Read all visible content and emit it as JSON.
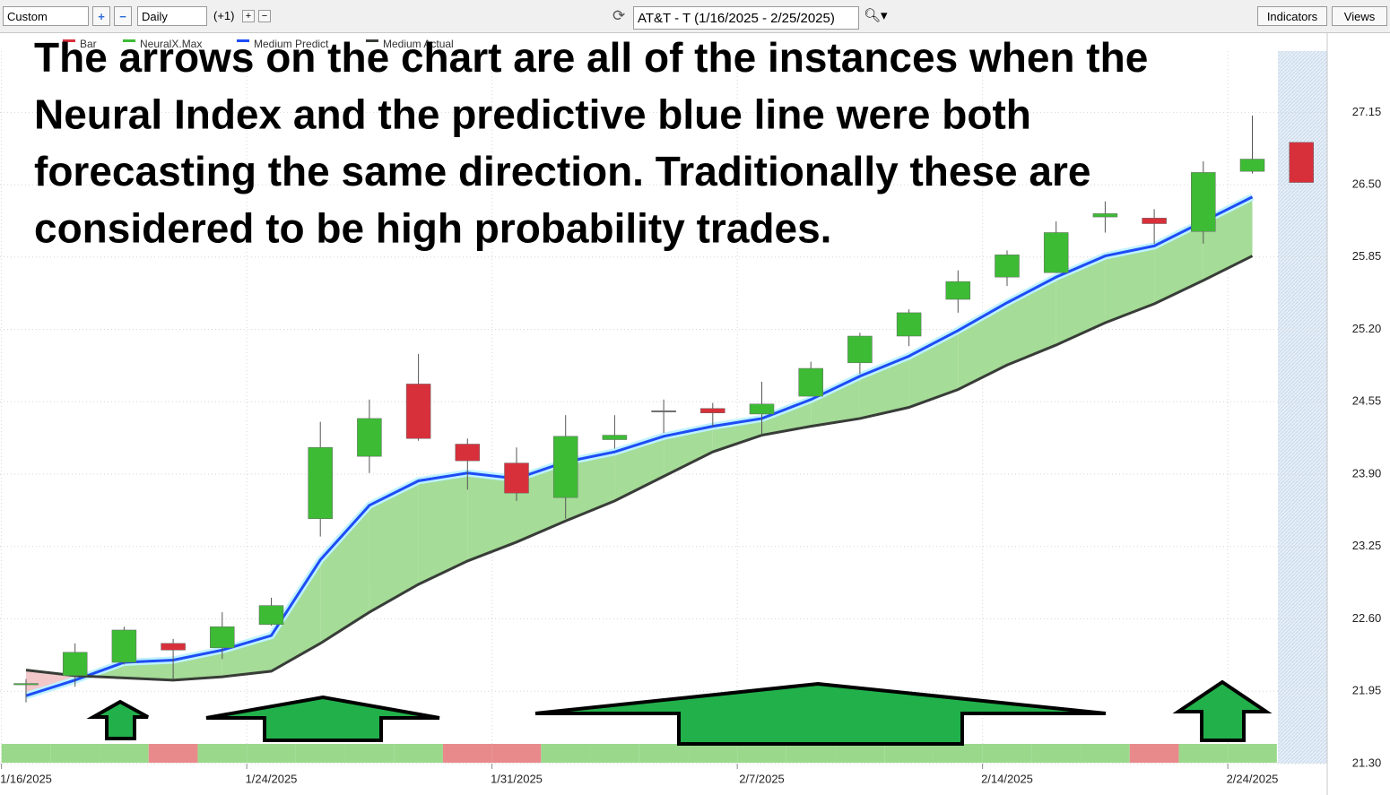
{
  "toolbar": {
    "range": "Custom",
    "interval": "Daily",
    "offset": "(+1)",
    "symbol": "AT&T - T (1/16/2025 - 2/25/2025)",
    "indicators": "Indicators",
    "views": "Views"
  },
  "chart_data": {
    "type": "candlestick",
    "annotation": [
      "The arrows on the chart are all of the instances when the",
      "Neural Index and the predictive blue line were both",
      "forecasting the same direction.  Traditionally these are",
      "considered to be high probability trades."
    ],
    "candle_legend": "Bar",
    "categories": [
      "1/16/2025",
      null,
      null,
      null,
      null,
      "1/24/2025",
      null,
      null,
      null,
      null,
      "1/31/2025",
      null,
      null,
      null,
      null,
      "2/7/2025",
      null,
      null,
      null,
      null,
      "2/14/2025",
      null,
      null,
      null,
      null,
      "2/24/2025",
      null
    ],
    "open": [
      22.01,
      22.09,
      22.21,
      22.38,
      22.34,
      22.55,
      23.5,
      24.06,
      24.71,
      24.17,
      24.0,
      23.69,
      24.21,
      24.47,
      24.49,
      24.44,
      24.6,
      24.9,
      25.14,
      25.47,
      25.67,
      25.71,
      26.21,
      26.2,
      26.08,
      26.62,
      26.88
    ],
    "high": [
      22.06,
      22.38,
      22.53,
      22.42,
      22.66,
      22.79,
      24.37,
      24.57,
      24.98,
      24.22,
      24.14,
      24.43,
      24.43,
      24.57,
      24.54,
      24.73,
      24.91,
      25.17,
      25.38,
      25.73,
      25.91,
      26.17,
      26.35,
      26.28,
      26.71,
      27.12,
      26.88
    ],
    "low": [
      21.85,
      21.99,
      22.19,
      22.06,
      22.24,
      22.54,
      23.34,
      23.91,
      24.2,
      23.76,
      23.66,
      23.5,
      24.13,
      24.27,
      24.33,
      24.25,
      24.6,
      24.8,
      25.05,
      25.35,
      25.59,
      25.71,
      26.07,
      25.97,
      25.97,
      26.6,
      26.52
    ],
    "close": [
      22.02,
      22.3,
      22.5,
      22.32,
      22.53,
      22.72,
      24.14,
      24.4,
      24.22,
      24.02,
      23.73,
      24.24,
      24.25,
      24.47,
      24.45,
      24.53,
      24.85,
      25.14,
      25.35,
      25.63,
      25.87,
      26.07,
      26.24,
      26.15,
      26.61,
      26.73,
      26.52
    ],
    "up_color": "#3dbb35",
    "down_color": "#d8303b",
    "series": [
      {
        "name": "Medium Predict",
        "color": "#1e4cf5",
        "values": [
          21.91,
          22.05,
          22.21,
          22.23,
          22.32,
          22.45,
          23.13,
          23.62,
          23.84,
          23.91,
          23.86,
          24.01,
          24.1,
          24.24,
          24.33,
          24.4,
          24.57,
          24.78,
          24.96,
          25.19,
          25.44,
          25.67,
          25.86,
          25.95,
          26.17,
          26.39,
          null
        ]
      },
      {
        "name": "Medium Actual",
        "color": "#383d38",
        "values": [
          22.14,
          22.09,
          22.07,
          22.05,
          22.08,
          22.13,
          22.38,
          22.66,
          22.91,
          23.12,
          23.29,
          23.48,
          23.66,
          23.88,
          24.1,
          24.25,
          24.33,
          24.4,
          24.5,
          24.66,
          24.88,
          25.06,
          25.26,
          25.43,
          25.64,
          25.86,
          null
        ]
      }
    ],
    "neural_index": {
      "name": "NeuralX.Max",
      "colors": [
        "#9ad98c",
        "#9ad98c",
        "#9ad98c",
        "#e88a8c",
        "#9ad98c",
        "#9ad98c",
        "#9ad98c",
        "#9ad98c",
        "#9ad98c",
        "#e88a8c",
        "#e88a8c",
        "#9ad98c",
        "#9ad98c",
        "#9ad98c",
        "#9ad98c",
        "#9ad98c",
        "#9ad98c",
        "#9ad98c",
        "#9ad98c",
        "#9ad98c",
        "#9ad98c",
        "#9ad98c",
        "#9ad98c",
        "#e88a8c",
        "#9ad98c",
        "#9ad98c"
      ]
    },
    "ylim": [
      21.3,
      27.7
    ],
    "yticks": [
      {
        "value": 21.3,
        "label": "21.30"
      },
      {
        "value": 21.95,
        "label": "21.95"
      },
      {
        "value": 22.6,
        "label": "22.60"
      },
      {
        "value": 23.25,
        "label": "23.25"
      },
      {
        "value": 23.9,
        "label": "23.90"
      },
      {
        "value": 24.55,
        "label": "24.55"
      },
      {
        "value": 25.2,
        "label": "25.20"
      },
      {
        "value": 25.85,
        "label": "25.85"
      },
      {
        "value": 26.5,
        "label": "26.50"
      },
      {
        "value": 27.15,
        "label": "27.15"
      }
    ],
    "grid": true
  }
}
